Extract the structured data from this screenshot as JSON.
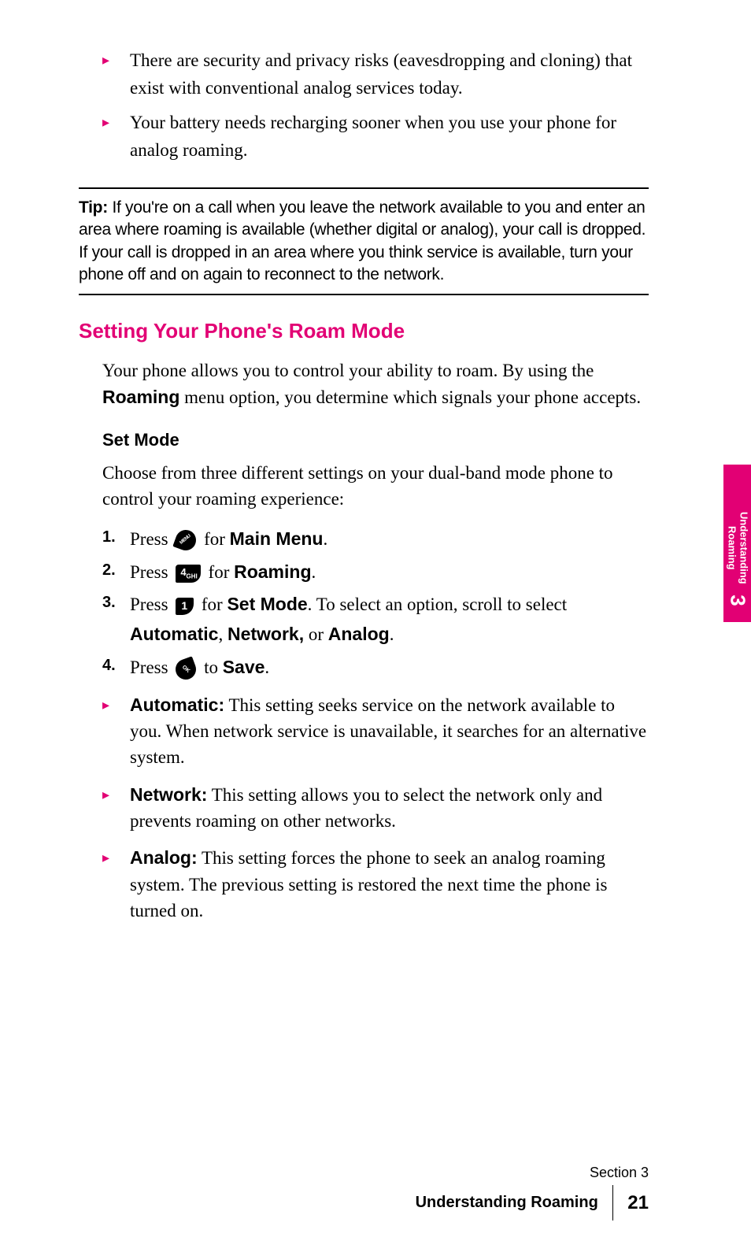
{
  "colors": {
    "accent": "#e20074",
    "text": "#000000",
    "background": "#ffffff"
  },
  "fonts": {
    "body_family": "Georgia serif",
    "heading_family": "Arial sans-serif",
    "body_size_pt": 17,
    "heading_size_pt": 20,
    "tip_size_pt": 16
  },
  "top_bullets": [
    "There are security and privacy risks (eavesdropping and cloning) that exist with conventional analog services today.",
    "Your battery needs recharging sooner when you use your phone for analog roaming."
  ],
  "tip": {
    "label": "Tip:",
    "text": "If you're on a call when you leave the network available to you and enter an area where roaming is available (whether digital or analog), your call is dropped. If your call is dropped in an area where you think service is available, turn your phone off and on again to reconnect to the network."
  },
  "section": {
    "heading": "Setting Your Phone's Roam Mode",
    "intro_pre": "Your phone allows you to control your ability to roam. By using the ",
    "intro_bold": "Roaming",
    "intro_post": " menu option, you determine which signals your phone accepts.",
    "sub_heading": "Set Mode",
    "sub_para": "Choose from three different settings on your dual-band mode phone to control your roaming experience:"
  },
  "steps": [
    {
      "num": "1.",
      "pre": "Press ",
      "icon": "menu",
      "mid": " for ",
      "bold": "Main Menu",
      "post": "."
    },
    {
      "num": "2.",
      "pre": "Press ",
      "icon": "4ghi",
      "mid": " for ",
      "bold": "Roaming",
      "post": "."
    },
    {
      "num": "3.",
      "pre": "Press ",
      "icon": "1",
      "mid": " for ",
      "bold": "Set Mode",
      "post": ". To select an option, scroll to select ",
      "bold2_a": "Automatic",
      "sep1": ", ",
      "bold2_b": "Network,",
      "sep2": " or ",
      "bold2_c": "Analog",
      "post2": "."
    },
    {
      "num": "4.",
      "pre": "Press ",
      "icon": "ok",
      "mid": " to ",
      "bold": "Save",
      "post": "."
    }
  ],
  "icon_labels": {
    "4ghi_main": "4",
    "4ghi_sub": "GHI",
    "1_main": "1"
  },
  "options": [
    {
      "term": "Automatic:",
      "desc": " This setting seeks service on the network available to you. When network service is unavailable, it searches for an alternative system."
    },
    {
      "term": "Network:",
      "desc": " This setting allows you to select the network only and prevents roaming on other networks."
    },
    {
      "term": "Analog:",
      "desc": " This setting forces the phone to seek an analog roaming system. The previous setting is restored the next time the phone is turned on."
    }
  ],
  "side_tab": {
    "line1": "Understanding",
    "line2": "Roaming",
    "chapter": "3"
  },
  "footer": {
    "section_label": "Section 3",
    "title": "Understanding Roaming",
    "page_number": "21"
  }
}
